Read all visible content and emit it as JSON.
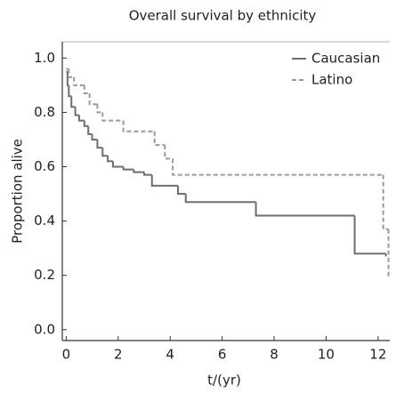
{
  "chart_data": {
    "type": "line",
    "step": true,
    "title": "Overall survival by ethnicity",
    "xlabel": "t/(yr)",
    "ylabel": "Proportion alive",
    "xlim": [
      -0.15,
      12.45
    ],
    "ylim": [
      -0.04,
      1.06
    ],
    "xticks": [
      0,
      2,
      4,
      6,
      8,
      10,
      12
    ],
    "yticks": [
      {
        "value": 0,
        "label": "0.0"
      },
      0.2,
      0.4,
      0.6,
      0.8,
      {
        "value": 1,
        "label": "1.0"
      }
    ],
    "legend": "upper right",
    "series": [
      {
        "name": "Caucasian",
        "color": "#6e6e6e",
        "dashed": false,
        "x": [
          0,
          0.05,
          0.1,
          0.2,
          0.35,
          0.5,
          0.7,
          0.85,
          1.0,
          1.2,
          1.4,
          1.6,
          1.8,
          2.2,
          2.6,
          3.0,
          3.3,
          4.3,
          4.6,
          7.3,
          11.1,
          12.3
        ],
        "values": [
          0.95,
          0.9,
          0.86,
          0.82,
          0.79,
          0.77,
          0.75,
          0.72,
          0.7,
          0.67,
          0.64,
          0.62,
          0.6,
          0.59,
          0.58,
          0.57,
          0.53,
          0.5,
          0.47,
          0.42,
          0.28,
          0.27
        ]
      },
      {
        "name": "Latino",
        "color": "#9a9a9a",
        "dashed": true,
        "x": [
          0,
          0.1,
          0.3,
          0.7,
          0.9,
          1.2,
          1.4,
          2.2,
          3.4,
          3.8,
          4.1,
          12.2,
          12.4
        ],
        "values": [
          0.96,
          0.93,
          0.9,
          0.87,
          0.83,
          0.8,
          0.77,
          0.73,
          0.68,
          0.63,
          0.57,
          0.37,
          0.19
        ]
      }
    ]
  }
}
